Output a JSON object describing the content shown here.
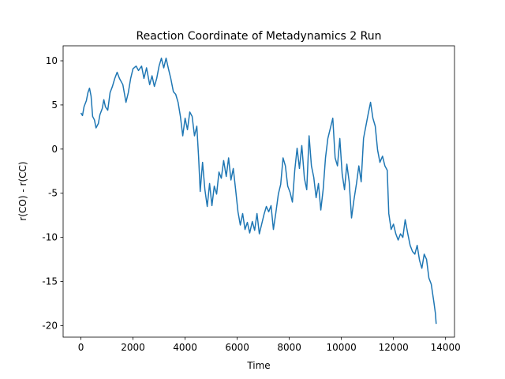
{
  "chart_data": {
    "type": "line",
    "title": "Reaction Coordinate of Metadynamics 2 Run",
    "x_label": "Time",
    "y_label": "r(CO) - r(CC)",
    "xlim": [
      -683,
      14343
    ],
    "ylim": [
      -21.3,
      11.7
    ],
    "xticks": [
      0,
      2000,
      4000,
      6000,
      8000,
      10000,
      12000,
      14000
    ],
    "yticks": [
      -20,
      -15,
      -10,
      -5,
      0,
      5,
      10
    ],
    "grid": false,
    "x": [
      0,
      60,
      120,
      210,
      270,
      330,
      390,
      450,
      520,
      580,
      670,
      730,
      820,
      880,
      940,
      1030,
      1120,
      1210,
      1300,
      1390,
      1480,
      1610,
      1730,
      1820,
      1910,
      2000,
      2120,
      2210,
      2330,
      2420,
      2520,
      2640,
      2730,
      2820,
      2910,
      3000,
      3090,
      3180,
      3270,
      3360,
      3450,
      3550,
      3640,
      3730,
      3820,
      3910,
      4000,
      4090,
      4180,
      4270,
      4360,
      4450,
      4520,
      4580,
      4670,
      4760,
      4850,
      4940,
      5030,
      5120,
      5210,
      5300,
      5390,
      5480,
      5580,
      5670,
      5760,
      5850,
      5940,
      6030,
      6120,
      6210,
      6300,
      6390,
      6480,
      6580,
      6670,
      6760,
      6850,
      6940,
      7030,
      7120,
      7210,
      7300,
      7390,
      7480,
      7580,
      7670,
      7760,
      7850,
      7940,
      8030,
      8120,
      8210,
      8300,
      8390,
      8480,
      8580,
      8670,
      8760,
      8850,
      8940,
      9030,
      9120,
      9210,
      9300,
      9390,
      9480,
      9580,
      9670,
      9760,
      9850,
      9940,
      10030,
      10120,
      10210,
      10300,
      10390,
      10480,
      10580,
      10670,
      10760,
      10850,
      10940,
      11030,
      11120,
      11210,
      11300,
      11390,
      11480,
      11580,
      11670,
      11760,
      11820,
      11910,
      12000,
      12090,
      12180,
      12270,
      12360,
      12450,
      12550,
      12640,
      12730,
      12820,
      12910,
      13000,
      13090,
      13180,
      13270,
      13360,
      13450,
      13550,
      13610,
      13640
    ],
    "series": [
      {
        "name": "reaction coordinate",
        "color": "#1f77b4",
        "values": [
          4.1,
          3.8,
          4.8,
          5.5,
          6.4,
          6.9,
          6.0,
          3.7,
          3.3,
          2.4,
          2.9,
          3.9,
          4.6,
          5.6,
          4.8,
          4.4,
          6.4,
          7.1,
          8.0,
          8.7,
          8.0,
          7.3,
          5.3,
          6.4,
          8.0,
          9.1,
          9.4,
          8.9,
          9.4,
          8.0,
          9.2,
          7.3,
          8.3,
          7.1,
          8.0,
          9.4,
          10.3,
          9.2,
          10.3,
          9.1,
          8.0,
          6.5,
          6.2,
          5.3,
          3.7,
          1.5,
          3.5,
          2.2,
          4.2,
          3.7,
          1.5,
          2.6,
          -1.0,
          -4.8,
          -1.5,
          -4.6,
          -6.5,
          -3.9,
          -6.4,
          -4.2,
          -5.1,
          -2.6,
          -3.3,
          -1.3,
          -3.1,
          -1.0,
          -3.5,
          -2.2,
          -4.6,
          -7.1,
          -8.6,
          -7.3,
          -9.1,
          -8.3,
          -9.5,
          -8.2,
          -9.2,
          -7.3,
          -9.6,
          -8.5,
          -7.4,
          -6.5,
          -7.1,
          -6.4,
          -9.1,
          -7.3,
          -5.1,
          -4.0,
          -1.0,
          -1.9,
          -4.2,
          -4.9,
          -6.0,
          -2.4,
          0.1,
          -2.2,
          0.4,
          -3.3,
          -4.6,
          1.5,
          -1.9,
          -3.2,
          -5.5,
          -3.9,
          -6.9,
          -4.6,
          -1.0,
          1.2,
          2.4,
          3.5,
          -1.0,
          -1.9,
          1.2,
          -2.8,
          -4.6,
          -1.7,
          -3.7,
          -7.8,
          -5.8,
          -3.9,
          -1.9,
          -3.7,
          1.2,
          2.6,
          4.0,
          5.3,
          3.5,
          2.6,
          -0.1,
          -1.5,
          -0.8,
          -1.9,
          -2.4,
          -7.3,
          -9.1,
          -8.5,
          -9.6,
          -10.3,
          -9.6,
          -10.0,
          -8.0,
          -9.6,
          -10.9,
          -11.6,
          -11.9,
          -10.9,
          -12.6,
          -13.5,
          -11.9,
          -12.5,
          -14.6,
          -15.3,
          -17.3,
          -18.6,
          -19.8
        ]
      }
    ]
  }
}
